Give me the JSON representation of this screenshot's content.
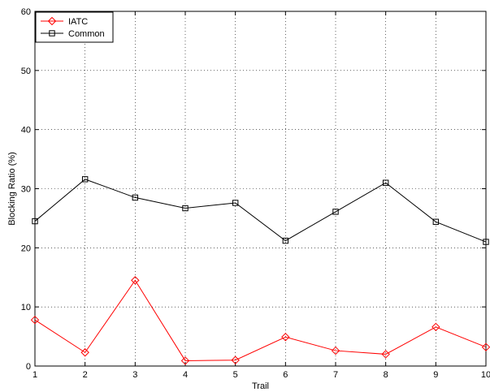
{
  "chart_data": {
    "type": "line",
    "title": "",
    "xlabel": "Trail",
    "ylabel": "Blocking Ratio (%)",
    "x": [
      1,
      2,
      3,
      4,
      5,
      6,
      7,
      8,
      9,
      10
    ],
    "xlim": [
      1,
      10
    ],
    "ylim": [
      0,
      60
    ],
    "xticks": [
      "1",
      "2",
      "3",
      "4",
      "5",
      "6",
      "7",
      "8",
      "9",
      "10"
    ],
    "yticks": [
      "0",
      "10",
      "20",
      "30",
      "40",
      "50",
      "60"
    ],
    "grid": true,
    "legend_position": "top-left",
    "series": [
      {
        "name": "IATC",
        "color": "#ff0000",
        "marker": "diamond",
        "values": [
          7.8,
          2.3,
          14.5,
          0.9,
          1.0,
          4.9,
          2.6,
          2.0,
          6.6,
          3.2
        ]
      },
      {
        "name": "Common",
        "color": "#000000",
        "marker": "square",
        "values": [
          24.5,
          31.6,
          28.5,
          26.7,
          27.6,
          21.2,
          26.1,
          31.0,
          24.4,
          21.0
        ]
      }
    ]
  }
}
